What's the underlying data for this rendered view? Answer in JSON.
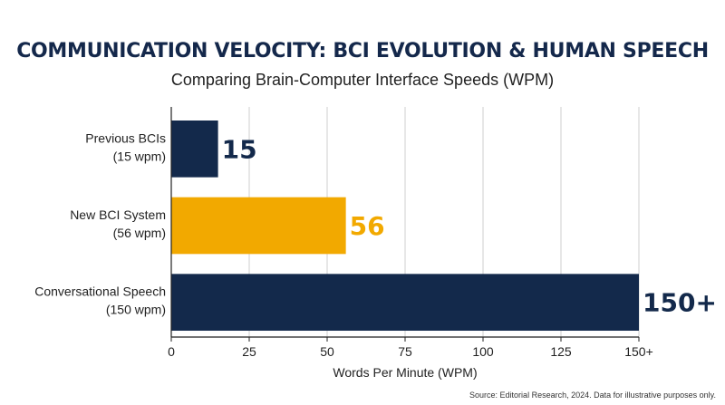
{
  "chart_data": {
    "type": "bar",
    "orientation": "horizontal",
    "title": "COMMUNICATION VELOCITY: BCI EVOLUTION & HUMAN SPEECH",
    "subtitle": "Comparing Brain-Computer Interface Speeds (WPM)",
    "categories": [
      [
        "Previous BCIs",
        "(15 wpm)"
      ],
      [
        "New BCI System",
        "(56 wpm)"
      ],
      [
        "Conversational Speech",
        "(150 wpm)"
      ]
    ],
    "values": [
      15,
      56,
      150
    ],
    "value_labels": [
      "15",
      "56",
      "150+"
    ],
    "colors": [
      "#13294b",
      "#f2a900",
      "#13294b"
    ],
    "xlabel": "Words Per Minute (WPM)",
    "xlim": [
      0,
      150
    ],
    "xticks": [
      0,
      25,
      50,
      75,
      100,
      125,
      150
    ],
    "xtick_labels": [
      "0",
      "25",
      "50",
      "75",
      "100",
      "125",
      "150+"
    ],
    "grid": true
  },
  "source": "Source: Editorial Research, 2024. Data for illustrative purposes only."
}
